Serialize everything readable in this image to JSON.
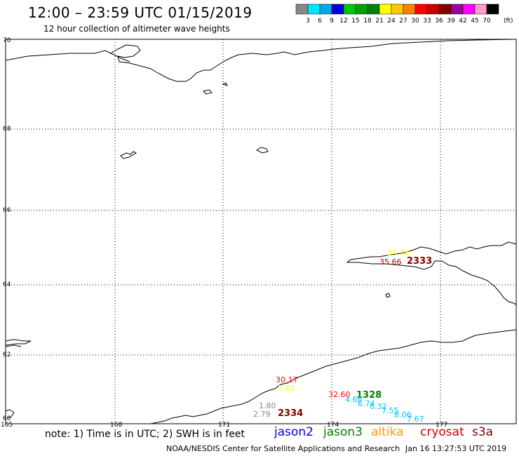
{
  "title": "12:00 – 23:59 UTC 01/15/2019",
  "subtitle": "12 hour collection of altimeter wave heights",
  "legend": {
    "labels": [
      "3",
      "6",
      "9",
      "12",
      "15",
      "18",
      "21",
      "24",
      "27",
      "30",
      "33",
      "36",
      "39",
      "42",
      "45",
      "70"
    ],
    "unit": "(ft)",
    "colors": [
      "#888888",
      "#00e5ff",
      "#00a8e8",
      "#0000dd",
      "#00c800",
      "#00a000",
      "#008000",
      "#ffff00",
      "#ffc800",
      "#ff8000",
      "#ff0000",
      "#c80000",
      "#800000",
      "#a000a0",
      "#ff00ff",
      "#ff99cc",
      "#000000"
    ]
  },
  "axes": {
    "lat_labels": [
      "70",
      "68",
      "66",
      "64",
      "62",
      "60"
    ],
    "lon_labels": [
      "165",
      "168",
      "171",
      "174",
      "177"
    ]
  },
  "observations": [
    {
      "text": "23.78",
      "color": "#ffff00"
    },
    {
      "text": "35.66",
      "color": "#c80000"
    },
    {
      "text": "2333",
      "color": "#800000",
      "bold": true
    },
    {
      "text": "30.17",
      "color": "#ff0000"
    },
    {
      "text": "7.65",
      "color": "#ffff00"
    },
    {
      "text": "1.80",
      "color": "#888888"
    },
    {
      "text": "2.79",
      "color": "#888888"
    },
    {
      "text": "2334",
      "color": "#800000",
      "bold": true
    },
    {
      "text": "32.60",
      "color": "#ff0000"
    },
    {
      "text": "1328",
      "color": "#008000",
      "bold": true
    },
    {
      "text": "4.66",
      "color": "#00bfff"
    },
    {
      "text": "6.74",
      "color": "#00bfff"
    },
    {
      "text": "6.32",
      "color": "#00bfff"
    },
    {
      "text": "7.55",
      "color": "#00bfff"
    },
    {
      "text": "8.06",
      "color": "#00bfff"
    },
    {
      "text": "7.67",
      "color": "#00bfff"
    }
  ],
  "note": "note:  1) Time is in UTC;  2) SWH is in feet",
  "satellites": [
    {
      "name": "jason2",
      "color": "#0000cc"
    },
    {
      "name": "jason3",
      "color": "#008000"
    },
    {
      "name": "altika",
      "color": "#ff9900"
    },
    {
      "name": "cryosat",
      "color": "#cc0000"
    },
    {
      "name": "s3a",
      "color": "#800000"
    }
  ],
  "credit": "NOAA/NESDIS Center for Satellite Applications and Research",
  "timestamp": "Jan 16 13:27:53 UTC 2019"
}
